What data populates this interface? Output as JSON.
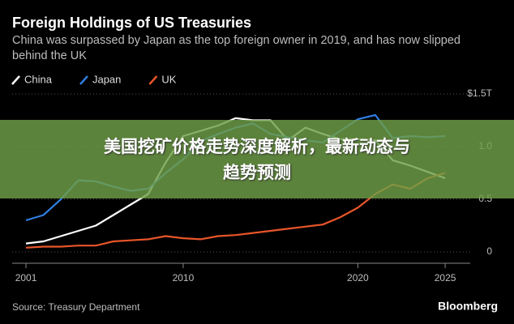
{
  "chart_data": {
    "type": "line",
    "title": "Foreign Holdings of US Treasuries",
    "subtitle": "China was surpassed by Japan as the top foreign owner in 2019, and has now slipped behind the UK",
    "source": "Source: Treasury Department",
    "brand": "Bloomberg",
    "x": [
      2001,
      2002,
      2003,
      2004,
      2005,
      2006,
      2007,
      2008,
      2009,
      2010,
      2011,
      2012,
      2013,
      2014,
      2015,
      2016,
      2017,
      2018,
      2019,
      2020,
      2021,
      2022,
      2023,
      2024,
      2025
    ],
    "series": [
      {
        "name": "China",
        "color": "#ffffff",
        "values": [
          0.08,
          0.1,
          0.15,
          0.2,
          0.25,
          0.35,
          0.45,
          0.55,
          0.85,
          1.1,
          1.15,
          1.2,
          1.27,
          1.25,
          1.25,
          1.06,
          1.18,
          1.12,
          1.07,
          1.07,
          1.06,
          0.87,
          0.82,
          0.76,
          0.7
        ]
      },
      {
        "name": "Japan",
        "color": "#2f7de1",
        "values": [
          0.3,
          0.35,
          0.5,
          0.68,
          0.67,
          0.62,
          0.58,
          0.6,
          0.75,
          0.88,
          1.05,
          1.12,
          1.18,
          1.22,
          1.12,
          1.09,
          1.06,
          1.04,
          1.15,
          1.26,
          1.3,
          1.08,
          1.1,
          1.09,
          1.1
        ]
      },
      {
        "name": "UK",
        "color": "#e8552a",
        "values": [
          0.04,
          0.05,
          0.05,
          0.06,
          0.06,
          0.1,
          0.11,
          0.12,
          0.15,
          0.13,
          0.12,
          0.15,
          0.16,
          0.18,
          0.2,
          0.22,
          0.24,
          0.26,
          0.33,
          0.42,
          0.55,
          0.64,
          0.6,
          0.7,
          0.75
        ]
      }
    ],
    "xlim": [
      2000,
      2026.5
    ],
    "xticks": [
      2001,
      2010,
      2020,
      2025
    ],
    "ylim": [
      0,
      1.5
    ],
    "yticks": [
      0,
      0.5,
      {
        "value": 1,
        "label": "1.0"
      },
      {
        "value": 1.5,
        "label": "$1.5T"
      }
    ],
    "grid": true
  },
  "overlay": {
    "lines": [
      "美国挖矿价格走势深度解析，最新动态与",
      "趋势预测"
    ]
  }
}
